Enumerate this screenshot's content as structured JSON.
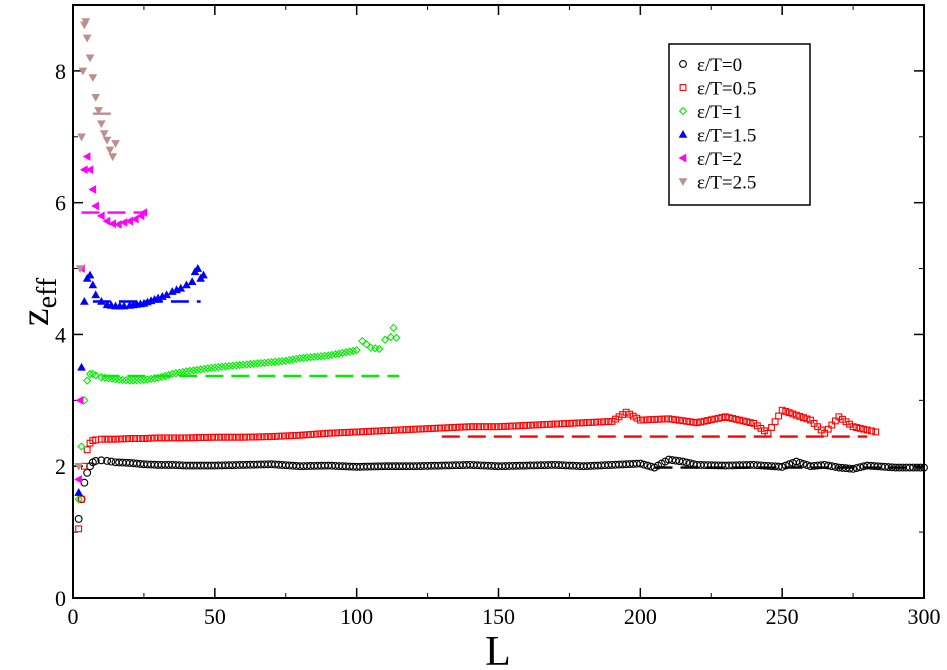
{
  "chart_data": {
    "type": "scatter",
    "title": "",
    "xlabel": "L",
    "ylabel_main": "z",
    "ylabel_sub": "eff",
    "xlim": [
      0,
      300
    ],
    "ylim": [
      0,
      9
    ],
    "x_ticks": [
      0,
      50,
      100,
      150,
      200,
      250,
      300
    ],
    "x_tick_labels": [
      "0",
      "50",
      "100",
      "150",
      "200",
      "250",
      "300"
    ],
    "y_ticks": [
      0,
      2,
      4,
      6,
      8
    ],
    "y_tick_labels": [
      "0",
      "2",
      "4",
      "6",
      "8"
    ],
    "grid": false,
    "legend_position": "top-right",
    "series": [
      {
        "name": "ε/T=0",
        "color": "#000000",
        "marker": "circle",
        "asymptote": 1.98,
        "asymptote_range": [
          205,
          300
        ],
        "points": [
          [
            2,
            1.2
          ],
          [
            3,
            1.5
          ],
          [
            4,
            1.75
          ],
          [
            5,
            1.9
          ],
          [
            6,
            2.0
          ],
          [
            7,
            2.06
          ],
          [
            8,
            2.08
          ],
          [
            10,
            2.09
          ],
          [
            12,
            2.08
          ],
          [
            15,
            2.06
          ],
          [
            20,
            2.05
          ],
          [
            25,
            2.03
          ],
          [
            30,
            2.02
          ],
          [
            35,
            2.02
          ],
          [
            40,
            2.01
          ],
          [
            50,
            2.01
          ],
          [
            60,
            2.02
          ],
          [
            70,
            2.03
          ],
          [
            80,
            2.0
          ],
          [
            90,
            2.01
          ],
          [
            100,
            1.99
          ],
          [
            110,
            2.0
          ],
          [
            120,
            2.0
          ],
          [
            130,
            2.01
          ],
          [
            140,
            2.02
          ],
          [
            150,
            2.0
          ],
          [
            160,
            2.01
          ],
          [
            170,
            2.02
          ],
          [
            180,
            2.0
          ],
          [
            190,
            2.02
          ],
          [
            200,
            2.04
          ],
          [
            205,
            1.98
          ],
          [
            210,
            2.1
          ],
          [
            215,
            2.07
          ],
          [
            220,
            2.02
          ],
          [
            230,
            2.01
          ],
          [
            240,
            2.02
          ],
          [
            250,
            1.99
          ],
          [
            255,
            2.07
          ],
          [
            260,
            2.0
          ],
          [
            265,
            2.02
          ],
          [
            270,
            1.98
          ],
          [
            275,
            1.96
          ],
          [
            280,
            2.01
          ],
          [
            290,
            1.98
          ],
          [
            300,
            1.98
          ]
        ]
      },
      {
        "name": "ε/T=0.5",
        "color": "#ff0000",
        "marker": "square",
        "asymptote": 2.45,
        "asymptote_range": [
          130,
          280
        ],
        "points": [
          [
            2,
            1.05
          ],
          [
            3,
            1.5
          ],
          [
            4,
            2.0
          ],
          [
            5,
            2.25
          ],
          [
            6,
            2.35
          ],
          [
            7,
            2.39
          ],
          [
            8,
            2.4
          ],
          [
            10,
            2.41
          ],
          [
            15,
            2.41
          ],
          [
            20,
            2.42
          ],
          [
            25,
            2.42
          ],
          [
            30,
            2.43
          ],
          [
            40,
            2.43
          ],
          [
            50,
            2.44
          ],
          [
            60,
            2.44
          ],
          [
            70,
            2.45
          ],
          [
            80,
            2.47
          ],
          [
            90,
            2.5
          ],
          [
            100,
            2.52
          ],
          [
            110,
            2.54
          ],
          [
            120,
            2.56
          ],
          [
            130,
            2.58
          ],
          [
            140,
            2.6
          ],
          [
            150,
            2.6
          ],
          [
            160,
            2.62
          ],
          [
            170,
            2.64
          ],
          [
            180,
            2.66
          ],
          [
            190,
            2.68
          ],
          [
            195,
            2.82
          ],
          [
            200,
            2.7
          ],
          [
            210,
            2.72
          ],
          [
            220,
            2.66
          ],
          [
            230,
            2.75
          ],
          [
            240,
            2.65
          ],
          [
            245,
            2.5
          ],
          [
            250,
            2.85
          ],
          [
            260,
            2.7
          ],
          [
            265,
            2.5
          ],
          [
            270,
            2.75
          ],
          [
            275,
            2.6
          ],
          [
            280,
            2.55
          ],
          [
            283,
            2.52
          ]
        ]
      },
      {
        "name": "ε/T=1",
        "color": "#00ee00",
        "marker": "diamond",
        "asymptote": 3.37,
        "asymptote_range": [
          10,
          115
        ],
        "points": [
          [
            2,
            1.5
          ],
          [
            3,
            2.3
          ],
          [
            4,
            3.0
          ],
          [
            5,
            3.3
          ],
          [
            6,
            3.4
          ],
          [
            7,
            3.4
          ],
          [
            8,
            3.38
          ],
          [
            10,
            3.35
          ],
          [
            15,
            3.32
          ],
          [
            20,
            3.3
          ],
          [
            25,
            3.31
          ],
          [
            30,
            3.34
          ],
          [
            35,
            3.4
          ],
          [
            40,
            3.44
          ],
          [
            45,
            3.47
          ],
          [
            50,
            3.5
          ],
          [
            55,
            3.52
          ],
          [
            60,
            3.54
          ],
          [
            65,
            3.56
          ],
          [
            70,
            3.58
          ],
          [
            75,
            3.6
          ],
          [
            80,
            3.64
          ],
          [
            85,
            3.66
          ],
          [
            90,
            3.68
          ],
          [
            95,
            3.72
          ],
          [
            100,
            3.76
          ],
          [
            102,
            3.9
          ],
          [
            105,
            3.8
          ],
          [
            108,
            3.78
          ],
          [
            110,
            3.92
          ],
          [
            112,
            3.96
          ],
          [
            113,
            4.1
          ],
          [
            114,
            3.95
          ]
        ]
      },
      {
        "name": "ε/T=1.5",
        "color": "#0000ff",
        "marker": "triangle-up",
        "asymptote": 4.5,
        "asymptote_range": [
          7,
          45
        ],
        "points": [
          [
            2,
            1.6
          ],
          [
            3,
            3.5
          ],
          [
            4,
            4.5
          ],
          [
            5,
            4.85
          ],
          [
            6,
            4.9
          ],
          [
            7,
            4.75
          ],
          [
            8,
            4.6
          ],
          [
            10,
            4.5
          ],
          [
            12,
            4.45
          ],
          [
            15,
            4.43
          ],
          [
            18,
            4.43
          ],
          [
            20,
            4.44
          ],
          [
            25,
            4.47
          ],
          [
            30,
            4.55
          ],
          [
            33,
            4.6
          ],
          [
            35,
            4.65
          ],
          [
            38,
            4.7
          ],
          [
            40,
            4.75
          ],
          [
            42,
            4.8
          ],
          [
            43,
            4.95
          ],
          [
            44,
            5.0
          ],
          [
            45,
            4.85
          ],
          [
            46,
            4.9
          ]
        ]
      },
      {
        "name": "ε/T=2",
        "color": "#ff00ff",
        "marker": "triangle-left",
        "asymptote": 5.85,
        "asymptote_range": [
          3,
          25
        ],
        "points": [
          [
            2,
            1.8
          ],
          [
            2.5,
            3.0
          ],
          [
            3,
            5.0
          ],
          [
            4,
            6.5
          ],
          [
            5,
            6.7
          ],
          [
            6,
            6.5
          ],
          [
            7,
            6.2
          ],
          [
            8,
            5.95
          ],
          [
            10,
            5.8
          ],
          [
            12,
            5.72
          ],
          [
            14,
            5.68
          ],
          [
            16,
            5.67
          ],
          [
            18,
            5.7
          ],
          [
            20,
            5.72
          ],
          [
            22,
            5.75
          ],
          [
            24,
            5.8
          ],
          [
            25,
            5.85
          ]
        ]
      },
      {
        "name": "ε/T=2.5",
        "color": "#bc8f8f",
        "marker": "triangle-down",
        "asymptote": 7.35,
        "asymptote_range": [
          7,
          15
        ],
        "points": [
          [
            2,
            2.0
          ],
          [
            2.5,
            5.0
          ],
          [
            3,
            7.0
          ],
          [
            3.5,
            8.0
          ],
          [
            4,
            8.7
          ],
          [
            4.5,
            8.75
          ],
          [
            5,
            8.5
          ],
          [
            6,
            8.2
          ],
          [
            7,
            7.9
          ],
          [
            8,
            7.6
          ],
          [
            9,
            7.4
          ],
          [
            10,
            7.2
          ],
          [
            11,
            7.05
          ],
          [
            12,
            6.95
          ],
          [
            13,
            6.8
          ],
          [
            14,
            6.7
          ],
          [
            15,
            6.9
          ]
        ]
      }
    ]
  }
}
